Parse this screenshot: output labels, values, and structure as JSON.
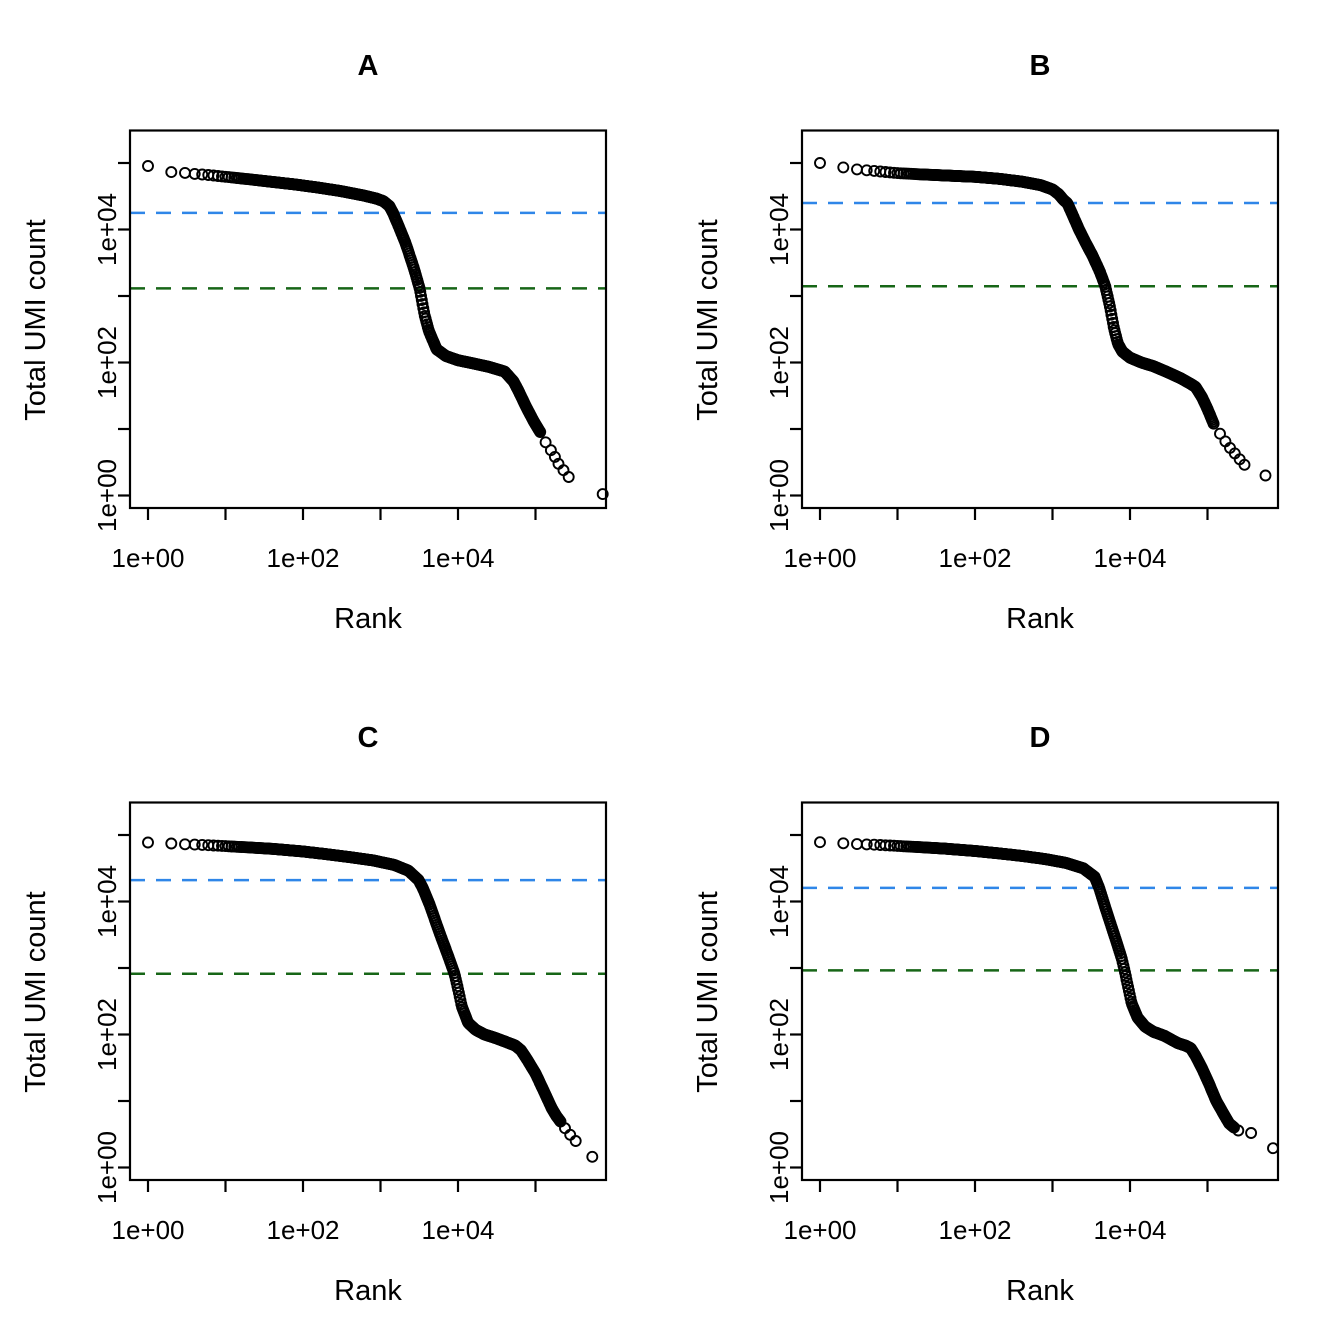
{
  "figure": {
    "background": "#ffffff",
    "marker": {
      "radius": 5,
      "stroke_width": 1.9,
      "color": "#000000"
    },
    "knee_color": "#2f86e8",
    "inflection_color": "#176617"
  },
  "chart_data": [
    {
      "type": "scatter",
      "panel_label": "A",
      "xlabel": "Rank",
      "ylabel": "Total UMI count",
      "x_scale": "log",
      "y_scale": "log",
      "x_tick_labels": [
        "1e+00",
        "1e+02",
        "1e+04"
      ],
      "y_tick_labels": [
        "1e+00",
        "1e+02",
        "1e+04"
      ],
      "x_range_log10": [
        0,
        5.9
      ],
      "y_range_log10": [
        0,
        5.5
      ],
      "knee_line": {
        "value": 17800,
        "style": "dashed"
      },
      "inflection_line": {
        "value": 1300,
        "style": "dashed"
      },
      "curve": [
        [
          1,
          90000
        ],
        [
          2,
          73000
        ],
        [
          3,
          71000
        ],
        [
          4,
          68500
        ],
        [
          6,
          66000
        ],
        [
          10,
          62000
        ],
        [
          20,
          57000
        ],
        [
          40,
          52000
        ],
        [
          80,
          47500
        ],
        [
          150,
          43000
        ],
        [
          300,
          38000
        ],
        [
          600,
          32500
        ],
        [
          900,
          29000
        ],
        [
          1100,
          26500
        ],
        [
          1300,
          22500
        ],
        [
          1450,
          17800
        ],
        [
          1700,
          11500
        ],
        [
          2100,
          6300
        ],
        [
          2700,
          2600
        ],
        [
          3200,
          1300
        ],
        [
          3700,
          520
        ],
        [
          4200,
          300
        ],
        [
          5300,
          158
        ],
        [
          7000,
          125
        ],
        [
          10000,
          108
        ],
        [
          15000,
          98
        ],
        [
          25000,
          86
        ],
        [
          40000,
          73
        ],
        [
          52000,
          52
        ],
        [
          60000,
          38
        ],
        [
          75000,
          22
        ],
        [
          95000,
          13
        ],
        [
          115000,
          9
        ]
      ],
      "tail_points": [
        [
          135000,
          6.3
        ],
        [
          158000,
          4.8
        ],
        [
          178000,
          3.8
        ],
        [
          198000,
          3.0
        ],
        [
          230000,
          2.4
        ],
        [
          268000,
          1.9
        ],
        [
          737000,
          1.05
        ]
      ]
    },
    {
      "type": "scatter",
      "panel_label": "B",
      "xlabel": "Rank",
      "ylabel": "Total UMI count",
      "x_scale": "log",
      "y_scale": "log",
      "x_tick_labels": [
        "1e+00",
        "1e+02",
        "1e+04"
      ],
      "y_tick_labels": [
        "1e+00",
        "1e+02",
        "1e+04"
      ],
      "x_range_log10": [
        0,
        5.9
      ],
      "y_range_log10": [
        0,
        5.5
      ],
      "knee_line": {
        "value": 25000,
        "style": "dashed"
      },
      "inflection_line": {
        "value": 1400,
        "style": "dashed"
      },
      "curve": [
        [
          1,
          100000
        ],
        [
          2,
          86000
        ],
        [
          3,
          80000
        ],
        [
          5,
          76000
        ],
        [
          10,
          70500
        ],
        [
          20,
          67500
        ],
        [
          40,
          65000
        ],
        [
          100,
          62000
        ],
        [
          200,
          58000
        ],
        [
          400,
          52500
        ],
        [
          700,
          46500
        ],
        [
          1000,
          40000
        ],
        [
          1200,
          34000
        ],
        [
          1400,
          27500
        ],
        [
          1550,
          25000
        ],
        [
          1800,
          17000
        ],
        [
          2200,
          10000
        ],
        [
          2700,
          6200
        ],
        [
          3300,
          4000
        ],
        [
          4100,
          2300
        ],
        [
          4800,
          1400
        ],
        [
          5500,
          700
        ],
        [
          6200,
          330
        ],
        [
          7000,
          190
        ],
        [
          8000,
          145
        ],
        [
          10000,
          118
        ],
        [
          14000,
          100
        ],
        [
          20000,
          88
        ],
        [
          30000,
          72
        ],
        [
          45000,
          58
        ],
        [
          60000,
          48
        ],
        [
          70000,
          43
        ],
        [
          85000,
          30
        ],
        [
          100000,
          20
        ],
        [
          120000,
          12
        ]
      ],
      "tail_points": [
        [
          145000,
          8.5
        ],
        [
          170000,
          6.5
        ],
        [
          195000,
          5.2
        ],
        [
          225000,
          4.3
        ],
        [
          260000,
          3.5
        ],
        [
          300000,
          2.9
        ],
        [
          560000,
          2.0
        ]
      ]
    },
    {
      "type": "scatter",
      "panel_label": "C",
      "xlabel": "Rank",
      "ylabel": "Total UMI count",
      "x_scale": "log",
      "y_scale": "log",
      "x_tick_labels": [
        "1e+00",
        "1e+02",
        "1e+04"
      ],
      "y_tick_labels": [
        "1e+00",
        "1e+02",
        "1e+04"
      ],
      "x_range_log10": [
        0,
        5.9
      ],
      "y_range_log10": [
        0,
        5.5
      ],
      "knee_line": {
        "value": 21000,
        "style": "dashed"
      },
      "inflection_line": {
        "value": 820,
        "style": "dashed"
      },
      "curve": [
        [
          1,
          77000
        ],
        [
          2,
          74500
        ],
        [
          3,
          72500
        ],
        [
          5,
          71000
        ],
        [
          10,
          68000
        ],
        [
          20,
          65000
        ],
        [
          40,
          62000
        ],
        [
          100,
          56500
        ],
        [
          200,
          51500
        ],
        [
          400,
          46500
        ],
        [
          800,
          41500
        ],
        [
          1500,
          35500
        ],
        [
          2300,
          29000
        ],
        [
          3100,
          21000
        ],
        [
          3600,
          15000
        ],
        [
          4300,
          9000
        ],
        [
          5200,
          4800
        ],
        [
          6200,
          2700
        ],
        [
          7500,
          1500
        ],
        [
          9000,
          820
        ],
        [
          10300,
          420
        ],
        [
          11200,
          264
        ],
        [
          13500,
          150
        ],
        [
          17000,
          117
        ],
        [
          22000,
          100
        ],
        [
          30000,
          89
        ],
        [
          42000,
          77
        ],
        [
          55000,
          68
        ],
        [
          65000,
          58
        ],
        [
          80000,
          40
        ],
        [
          100000,
          26
        ],
        [
          125000,
          15
        ],
        [
          160000,
          8
        ],
        [
          185000,
          6
        ],
        [
          210000,
          4.9
        ]
      ],
      "tail_points": [
        [
          240000,
          3.9
        ],
        [
          280000,
          3.1
        ],
        [
          330000,
          2.5
        ],
        [
          540000,
          1.45
        ]
      ]
    },
    {
      "type": "scatter",
      "panel_label": "D",
      "xlabel": "Rank",
      "ylabel": "Total UMI count",
      "x_scale": "log",
      "y_scale": "log",
      "x_tick_labels": [
        "1e+00",
        "1e+02",
        "1e+04"
      ],
      "y_tick_labels": [
        "1e+00",
        "1e+02",
        "1e+04"
      ],
      "x_range_log10": [
        0,
        5.9
      ],
      "y_range_log10": [
        0,
        5.5
      ],
      "knee_line": {
        "value": 16000,
        "style": "dashed"
      },
      "inflection_line": {
        "value": 920,
        "style": "dashed"
      },
      "curve": [
        [
          1,
          78000
        ],
        [
          2,
          75000
        ],
        [
          3,
          73000
        ],
        [
          5,
          71500
        ],
        [
          10,
          68500
        ],
        [
          20,
          65500
        ],
        [
          40,
          62500
        ],
        [
          100,
          57500
        ],
        [
          200,
          53000
        ],
        [
          400,
          48500
        ],
        [
          800,
          43500
        ],
        [
          1500,
          38000
        ],
        [
          2500,
          31500
        ],
        [
          3500,
          23500
        ],
        [
          4000,
          16000
        ],
        [
          4600,
          9500
        ],
        [
          5500,
          5000
        ],
        [
          6600,
          2600
        ],
        [
          7800,
          1400
        ],
        [
          8500,
          920
        ],
        [
          9600,
          480
        ],
        [
          10500,
          295
        ],
        [
          12500,
          180
        ],
        [
          15600,
          132
        ],
        [
          20000,
          110
        ],
        [
          28000,
          95
        ],
        [
          41500,
          74
        ],
        [
          52000,
          68
        ],
        [
          61000,
          62
        ],
        [
          70000,
          48
        ],
        [
          85000,
          31
        ],
        [
          105000,
          18
        ],
        [
          130000,
          10
        ],
        [
          160000,
          6.5
        ],
        [
          190000,
          4.6
        ],
        [
          220000,
          4.0
        ]
      ],
      "tail_points": [
        [
          250000,
          3.6
        ],
        [
          365000,
          3.3
        ],
        [
          700000,
          1.95
        ]
      ]
    }
  ]
}
